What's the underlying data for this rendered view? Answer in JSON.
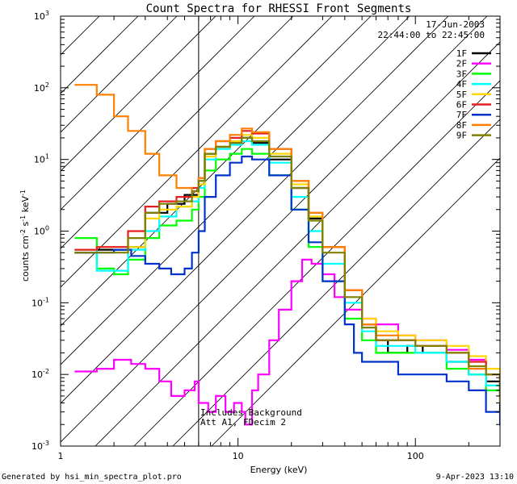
{
  "chart_data": {
    "type": "line",
    "title": "Count Spectra for RHESSI Front Segments",
    "xlabel": "Energy (keV)",
    "ylabel_main": "counts cm",
    "ylabel_exp1": "-2",
    "ylabel_mid1": " s",
    "ylabel_exp2": "-1",
    "ylabel_mid2": " keV",
    "ylabel_exp3": "-1",
    "xscale": "log",
    "yscale": "log",
    "xlim": [
      1,
      300
    ],
    "ylim": [
      0.001,
      1000
    ],
    "x_ticks": [
      {
        "value": 1,
        "label": "1"
      },
      {
        "value": 10,
        "label": "10"
      },
      {
        "value": 100,
        "label": "100"
      }
    ],
    "y_ticks": [
      {
        "value": 0.001,
        "base": "10",
        "exp": "-3"
      },
      {
        "value": 0.01,
        "base": "10",
        "exp": "-2"
      },
      {
        "value": 0.1,
        "base": "10",
        "exp": "-1"
      },
      {
        "value": 1,
        "base": "10",
        "exp": "0"
      },
      {
        "value": 10,
        "base": "10",
        "exp": "1"
      },
      {
        "value": 100,
        "base": "10",
        "exp": "2"
      },
      {
        "value": 1000,
        "base": "10",
        "exp": "3"
      }
    ],
    "date": "17-Jun-2003",
    "time_range": "22:44:00 to 22:45:00",
    "hatched_region_xmax": 6,
    "annotation_line1": "Includes Background",
    "annotation_line2": "Att A1, FDecim 2",
    "footer_left": "Generated by hsi_min_spectra_plot.pro",
    "footer_right": "9-Apr-2023 13:10",
    "legend_position": "top-right",
    "series": [
      {
        "name": "1F",
        "color": "#000000",
        "points": [
          [
            1.2,
            0.5
          ],
          [
            1.6,
            0.55
          ],
          [
            2.4,
            0.6
          ],
          [
            3.0,
            1.8
          ],
          [
            4.0,
            2.4
          ],
          [
            5.0,
            3.2
          ],
          [
            6.0,
            5.0
          ],
          [
            6.5,
            12
          ],
          [
            7.5,
            15
          ],
          [
            9.0,
            17
          ],
          [
            10.5,
            20
          ],
          [
            12,
            17
          ],
          [
            15,
            10
          ],
          [
            20,
            4
          ],
          [
            25,
            1.5
          ],
          [
            30,
            0.6
          ],
          [
            40,
            0.15
          ],
          [
            50,
            0.05
          ],
          [
            60,
            0.03
          ],
          [
            70,
            0.02
          ],
          [
            90,
            0.025
          ],
          [
            110,
            0.02
          ],
          [
            150,
            0.015
          ],
          [
            200,
            0.01
          ],
          [
            250,
            0.008
          ],
          [
            300,
            0.003
          ]
        ]
      },
      {
        "name": "2F",
        "color": "#ff00ff",
        "points": [
          [
            1.2,
            0.011
          ],
          [
            1.6,
            0.012
          ],
          [
            2.0,
            0.016
          ],
          [
            2.5,
            0.014
          ],
          [
            3.0,
            0.012
          ],
          [
            3.6,
            0.008
          ],
          [
            4.2,
            0.005
          ],
          [
            5.0,
            0.006
          ],
          [
            5.7,
            0.008
          ],
          [
            6.0,
            0.004
          ],
          [
            6.8,
            0.003
          ],
          [
            7.5,
            0.005
          ],
          [
            8.5,
            0.003
          ],
          [
            9.5,
            0.004
          ],
          [
            10.5,
            0.003
          ],
          [
            11,
            0.002
          ],
          [
            12,
            0.006
          ],
          [
            13,
            0.01
          ],
          [
            15,
            0.03
          ],
          [
            17,
            0.08
          ],
          [
            20,
            0.2
          ],
          [
            23,
            0.4
          ],
          [
            26,
            0.35
          ],
          [
            30,
            0.25
          ],
          [
            35,
            0.12
          ],
          [
            40,
            0.08
          ],
          [
            50,
            0.06
          ],
          [
            60,
            0.05
          ],
          [
            80,
            0.035
          ],
          [
            100,
            0.03
          ],
          [
            150,
            0.022
          ],
          [
            200,
            0.016
          ],
          [
            250,
            0.01
          ],
          [
            300,
            0.006
          ]
        ]
      },
      {
        "name": "3F",
        "color": "#00ff00",
        "points": [
          [
            1.2,
            0.8
          ],
          [
            1.6,
            0.3
          ],
          [
            2.0,
            0.25
          ],
          [
            2.4,
            0.4
          ],
          [
            3.0,
            0.8
          ],
          [
            3.6,
            1.2
          ],
          [
            4.5,
            1.4
          ],
          [
            5.5,
            2.0
          ],
          [
            6.0,
            3.0
          ],
          [
            6.5,
            7
          ],
          [
            7.5,
            10
          ],
          [
            9.0,
            12
          ],
          [
            10.5,
            14
          ],
          [
            12,
            12
          ],
          [
            15,
            6
          ],
          [
            20,
            2
          ],
          [
            25,
            0.6
          ],
          [
            30,
            0.2
          ],
          [
            40,
            0.06
          ],
          [
            50,
            0.03
          ],
          [
            60,
            0.02
          ],
          [
            80,
            0.02
          ],
          [
            100,
            0.02
          ],
          [
            150,
            0.012
          ],
          [
            200,
            0.01
          ],
          [
            250,
            0.006
          ],
          [
            300,
            0.005
          ]
        ]
      },
      {
        "name": "4F",
        "color": "#00ffff",
        "points": [
          [
            1.2,
            0.55
          ],
          [
            1.6,
            0.28
          ],
          [
            2.0,
            0.28
          ],
          [
            2.4,
            0.55
          ],
          [
            3.0,
            1.0
          ],
          [
            3.6,
            1.6
          ],
          [
            4.5,
            2.2
          ],
          [
            5.5,
            2.6
          ],
          [
            6.0,
            4.0
          ],
          [
            6.5,
            10
          ],
          [
            7.5,
            14
          ],
          [
            9.0,
            16
          ],
          [
            10.5,
            18
          ],
          [
            12,
            16
          ],
          [
            15,
            9
          ],
          [
            20,
            3
          ],
          [
            25,
            1
          ],
          [
            30,
            0.35
          ],
          [
            40,
            0.1
          ],
          [
            50,
            0.04
          ],
          [
            60,
            0.025
          ],
          [
            80,
            0.025
          ],
          [
            100,
            0.02
          ],
          [
            150,
            0.015
          ],
          [
            200,
            0.01
          ],
          [
            250,
            0.007
          ],
          [
            300,
            0.004
          ]
        ]
      },
      {
        "name": "5F",
        "color": "#ffd700",
        "points": [
          [
            1.2,
            0.55
          ],
          [
            1.6,
            0.6
          ],
          [
            2.4,
            0.6
          ],
          [
            3.0,
            1.5
          ],
          [
            3.6,
            2.0
          ],
          [
            4.5,
            2.2
          ],
          [
            5.5,
            3.0
          ],
          [
            6.0,
            4.5
          ],
          [
            6.5,
            11
          ],
          [
            7.5,
            15
          ],
          [
            9.0,
            18
          ],
          [
            10.5,
            22
          ],
          [
            12,
            20
          ],
          [
            15,
            12
          ],
          [
            20,
            4.5
          ],
          [
            25,
            1.6
          ],
          [
            30,
            0.6
          ],
          [
            40,
            0.15
          ],
          [
            50,
            0.06
          ],
          [
            60,
            0.04
          ],
          [
            80,
            0.035
          ],
          [
            100,
            0.03
          ],
          [
            150,
            0.025
          ],
          [
            200,
            0.018
          ],
          [
            250,
            0.012
          ],
          [
            300,
            0.006
          ]
        ]
      },
      {
        "name": "6F",
        "color": "#e32020",
        "points": [
          [
            1.2,
            0.55
          ],
          [
            1.6,
            0.6
          ],
          [
            2.4,
            1.0
          ],
          [
            3.0,
            2.2
          ],
          [
            3.6,
            2.6
          ],
          [
            4.5,
            3.0
          ],
          [
            5.5,
            4.0
          ],
          [
            6.0,
            5.5
          ],
          [
            6.5,
            14
          ],
          [
            7.5,
            18
          ],
          [
            9.0,
            20
          ],
          [
            10.5,
            25
          ],
          [
            12,
            23
          ],
          [
            15,
            14
          ],
          [
            20,
            5
          ],
          [
            25,
            1.8
          ],
          [
            30,
            0.6
          ],
          [
            40,
            0.15
          ],
          [
            50,
            0.05
          ],
          [
            60,
            0.03
          ],
          [
            80,
            0.03
          ],
          [
            100,
            0.025
          ],
          [
            150,
            0.02
          ],
          [
            200,
            0.015
          ],
          [
            250,
            0.01
          ],
          [
            300,
            0.005
          ]
        ]
      },
      {
        "name": "7F",
        "color": "#0033cc",
        "points": [
          [
            1.2,
            0.5
          ],
          [
            1.6,
            0.5
          ],
          [
            2.0,
            0.55
          ],
          [
            2.5,
            0.45
          ],
          [
            3.0,
            0.35
          ],
          [
            3.6,
            0.3
          ],
          [
            4.2,
            0.25
          ],
          [
            5.0,
            0.3
          ],
          [
            5.5,
            0.5
          ],
          [
            6.0,
            1.0
          ],
          [
            6.5,
            3.0
          ],
          [
            7.5,
            6
          ],
          [
            9.0,
            9
          ],
          [
            10.5,
            11
          ],
          [
            12,
            10
          ],
          [
            15,
            6
          ],
          [
            20,
            2
          ],
          [
            25,
            0.7
          ],
          [
            30,
            0.2
          ],
          [
            40,
            0.05
          ],
          [
            45,
            0.02
          ],
          [
            50,
            0.015
          ],
          [
            60,
            0.015
          ],
          [
            80,
            0.01
          ],
          [
            100,
            0.01
          ],
          [
            150,
            0.008
          ],
          [
            200,
            0.006
          ],
          [
            250,
            0.003
          ],
          [
            300,
            0.002
          ]
        ]
      },
      {
        "name": "8F",
        "color": "#ff8000",
        "points": [
          [
            1.2,
            110
          ],
          [
            1.6,
            80
          ],
          [
            2.0,
            40
          ],
          [
            2.4,
            25
          ],
          [
            3.0,
            12
          ],
          [
            3.6,
            6
          ],
          [
            4.5,
            4
          ],
          [
            5.5,
            3.6
          ],
          [
            6.0,
            5.5
          ],
          [
            6.5,
            14
          ],
          [
            7.5,
            18
          ],
          [
            9.0,
            22
          ],
          [
            10.5,
            27
          ],
          [
            12,
            24
          ],
          [
            15,
            14
          ],
          [
            20,
            5
          ],
          [
            25,
            1.8
          ],
          [
            30,
            0.6
          ],
          [
            40,
            0.15
          ],
          [
            50,
            0.05
          ],
          [
            60,
            0.035
          ],
          [
            80,
            0.03
          ],
          [
            100,
            0.025
          ],
          [
            150,
            0.02
          ],
          [
            200,
            0.012
          ],
          [
            250,
            0.01
          ],
          [
            300,
            0.004
          ]
        ]
      },
      {
        "name": "9F",
        "color": "#808000",
        "points": [
          [
            1.2,
            0.5
          ],
          [
            1.6,
            0.5
          ],
          [
            2.4,
            0.8
          ],
          [
            3.0,
            1.8
          ],
          [
            3.6,
            2.4
          ],
          [
            4.5,
            2.6
          ],
          [
            5.5,
            3.6
          ],
          [
            6.0,
            5.0
          ],
          [
            6.5,
            12
          ],
          [
            7.5,
            15
          ],
          [
            9.0,
            17
          ],
          [
            10.5,
            20
          ],
          [
            12,
            18
          ],
          [
            15,
            11
          ],
          [
            20,
            4
          ],
          [
            25,
            1.4
          ],
          [
            30,
            0.5
          ],
          [
            40,
            0.12
          ],
          [
            50,
            0.045
          ],
          [
            60,
            0.03
          ],
          [
            80,
            0.03
          ],
          [
            100,
            0.025
          ],
          [
            150,
            0.02
          ],
          [
            200,
            0.013
          ],
          [
            250,
            0.01
          ],
          [
            300,
            0.005
          ]
        ]
      }
    ]
  }
}
